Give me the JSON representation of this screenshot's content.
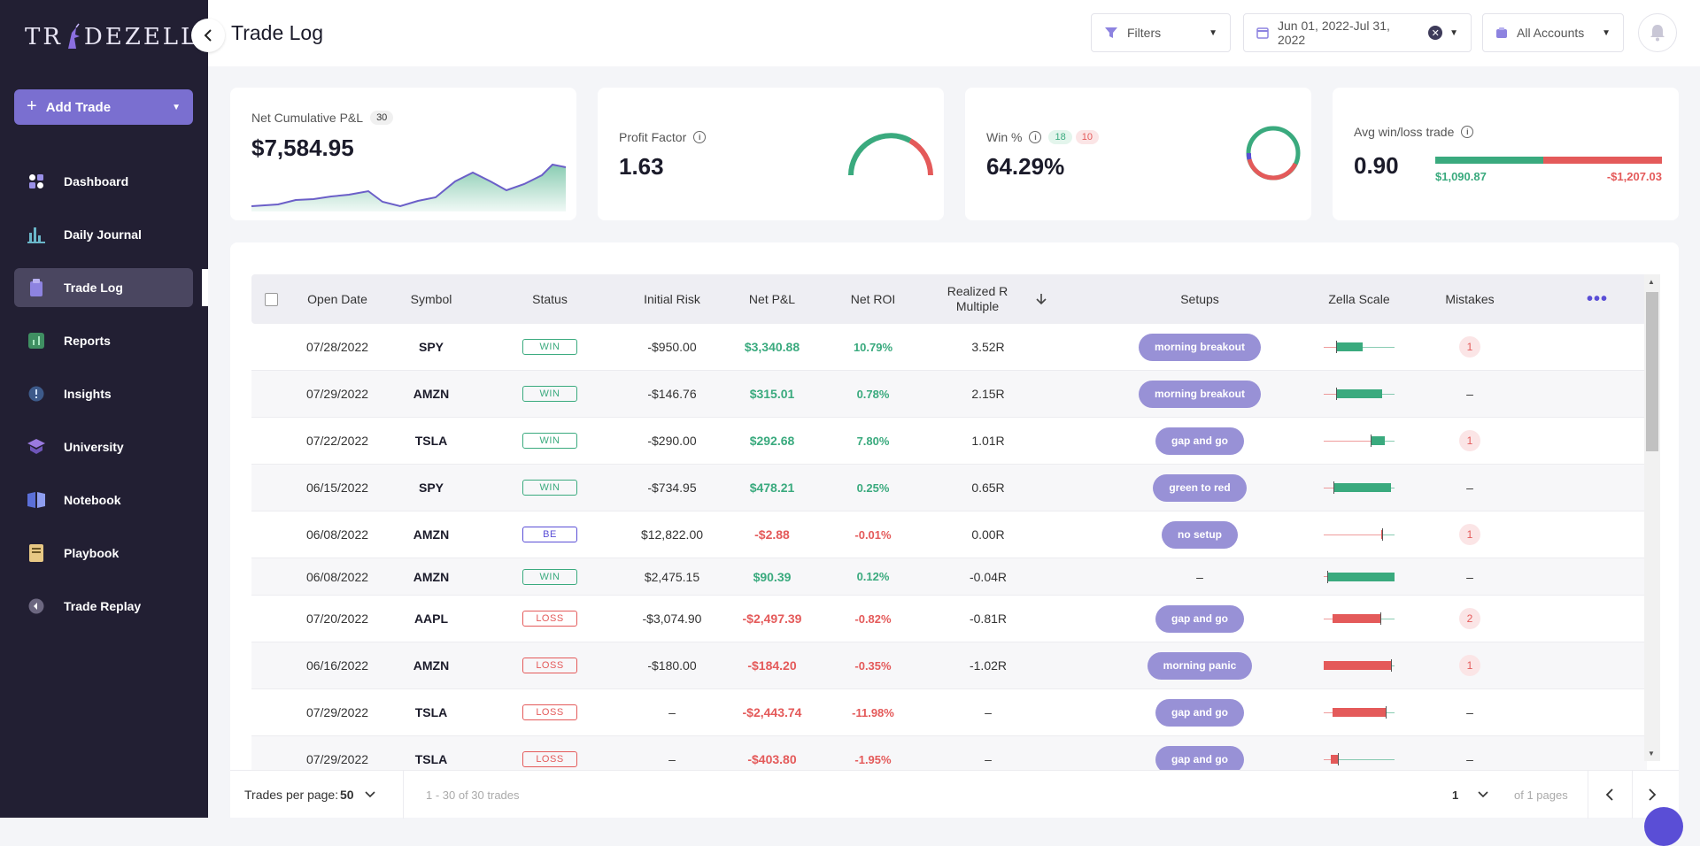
{
  "app": {
    "logo_text_left": "TR",
    "logo_text_right": "DEZELLA"
  },
  "sidebar": {
    "add_trade_label": "Add Trade",
    "items": [
      {
        "label": "Dashboard",
        "icon": "dashboard-icon"
      },
      {
        "label": "Daily Journal",
        "icon": "journal-icon"
      },
      {
        "label": "Trade Log",
        "icon": "trade-log-icon",
        "active": true
      },
      {
        "label": "Reports",
        "icon": "reports-icon"
      },
      {
        "label": "Insights",
        "icon": "insights-icon"
      },
      {
        "label": "University",
        "icon": "university-icon"
      },
      {
        "label": "Notebook",
        "icon": "notebook-icon"
      },
      {
        "label": "Playbook",
        "icon": "playbook-icon"
      },
      {
        "label": "Trade Replay",
        "icon": "trade-replay-icon"
      }
    ]
  },
  "header": {
    "title": "Trade Log",
    "filters_label": "Filters",
    "date_range": "Jun 01, 2022-Jul 31, 2022",
    "accounts_label": "All Accounts"
  },
  "stats": {
    "net_pnl": {
      "label": "Net Cumulative P&L",
      "count": "30",
      "value": "$7,584.95"
    },
    "profit_factor": {
      "label": "Profit Factor",
      "value": "1.63"
    },
    "win_pct": {
      "label": "Win %",
      "wins": "18",
      "losses": "10",
      "value": "64.29%"
    },
    "avg_win_loss": {
      "label": "Avg win/loss trade",
      "value": "0.90",
      "avg_win": "$1,090.87",
      "avg_loss": "-$1,207.03"
    }
  },
  "colors": {
    "accent": "#7a6fd0",
    "win": "#3aaa7e",
    "loss": "#e45a5a",
    "sidebar": "#221f33"
  },
  "table": {
    "columns": [
      "Open Date",
      "Symbol",
      "Status",
      "Initial Risk",
      "Net P&L",
      "Net ROI",
      "Realized R Multiple",
      "Setups",
      "Zella Scale",
      "Mistakes"
    ],
    "rows": [
      {
        "date": "07/28/2022",
        "symbol": "SPY",
        "status": "WIN",
        "risk": "-$950.00",
        "pnl": "$3,340.88",
        "roi": "10.79%",
        "r": "3.52R",
        "setup": "morning breakout",
        "mistakes": "1",
        "zs": {
          "bar": [
            0.18,
            0.55
          ],
          "color": "win",
          "tick": 0.18
        }
      },
      {
        "date": "07/29/2022",
        "symbol": "AMZN",
        "status": "WIN",
        "risk": "-$146.76",
        "pnl": "$315.01",
        "roi": "0.78%",
        "r": "2.15R",
        "setup": "morning breakout",
        "mistakes": "–",
        "zs": {
          "bar": [
            0.18,
            0.82
          ],
          "color": "win",
          "tick": 0.18
        }
      },
      {
        "date": "07/22/2022",
        "symbol": "TSLA",
        "status": "WIN",
        "risk": "-$290.00",
        "pnl": "$292.68",
        "roi": "7.80%",
        "r": "1.01R",
        "setup": "gap and go",
        "mistakes": "1",
        "zs": {
          "bar": [
            0.66,
            0.86
          ],
          "color": "win",
          "tick": 0.66
        }
      },
      {
        "date": "06/15/2022",
        "symbol": "SPY",
        "status": "WIN",
        "risk": "-$734.95",
        "pnl": "$478.21",
        "roi": "0.25%",
        "r": "0.65R",
        "setup": "green to red",
        "mistakes": "–",
        "zs": {
          "bar": [
            0.14,
            0.95
          ],
          "color": "win",
          "tick": 0.14
        }
      },
      {
        "date": "06/08/2022",
        "symbol": "AMZN",
        "status": "BE",
        "risk": "$12,822.00",
        "pnl": "-$2.88",
        "roi": "-0.01%",
        "r": "0.00R",
        "setup": "no setup",
        "mistakes": "1",
        "zs": {
          "bar": [
            0.81,
            0.82
          ],
          "color": "loss",
          "tick": 0.82
        }
      },
      {
        "date": "06/08/2022",
        "symbol": "AMZN",
        "status": "WIN",
        "risk": "$2,475.15",
        "pnl": "$90.39",
        "roi": "0.12%",
        "r": "-0.04R",
        "setup": "",
        "mistakes": "–",
        "zs": {
          "bar": [
            0.05,
            1.0
          ],
          "color": "win",
          "tick": 0.05
        }
      },
      {
        "date": "07/20/2022",
        "symbol": "AAPL",
        "status": "LOSS",
        "risk": "-$3,074.90",
        "pnl": "-$2,497.39",
        "roi": "-0.82%",
        "r": "-0.81R",
        "setup": "gap and go",
        "mistakes": "2",
        "zs": {
          "bar": [
            0.12,
            0.8
          ],
          "color": "loss",
          "tick": 0.8
        }
      },
      {
        "date": "06/16/2022",
        "symbol": "AMZN",
        "status": "LOSS",
        "risk": "-$180.00",
        "pnl": "-$184.20",
        "roi": "-0.35%",
        "r": "-1.02R",
        "setup": "morning panic",
        "mistakes": "1",
        "zs": {
          "bar": [
            0.0,
            0.95
          ],
          "color": "loss",
          "tick": 0.95
        }
      },
      {
        "date": "07/29/2022",
        "symbol": "TSLA",
        "status": "LOSS",
        "risk": "–",
        "pnl": "-$2,443.74",
        "roi": "-11.98%",
        "r": "–",
        "setup": "gap and go",
        "mistakes": "–",
        "zs": {
          "bar": [
            0.12,
            0.88
          ],
          "color": "loss",
          "tick": 0.88
        }
      },
      {
        "date": "07/29/2022",
        "symbol": "TSLA",
        "status": "LOSS",
        "risk": "–",
        "pnl": "-$403.80",
        "roi": "-1.95%",
        "r": "–",
        "setup": "gap and go",
        "mistakes": "–",
        "zs": {
          "bar": [
            0.1,
            0.2
          ],
          "color": "loss",
          "tick": 0.2
        }
      }
    ]
  },
  "footer": {
    "per_page_label": "Trades per page:",
    "per_page_value": "50",
    "range_text": "1 - 30 of 30 trades",
    "page": "1",
    "pages_text": "of 1 pages"
  }
}
